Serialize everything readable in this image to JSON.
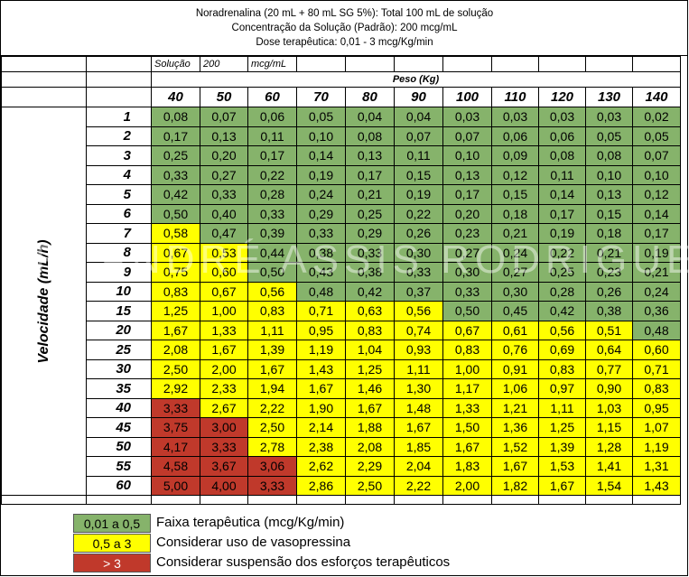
{
  "header": {
    "line1": "Noradrenalina (20 mL + 80 mL SG 5%): Total 100 mL de solução",
    "line2": "Concentração da Solução (Padrão): 200 mcg/mL",
    "line3": "Dose terapêutica: 0,01 - 3 mcg/Kg/min"
  },
  "solution_row": {
    "label": "Solução",
    "value": "200",
    "unit": "mcg/mL"
  },
  "peso_label": "Peso (Kg)",
  "axis_label": "Velocidade (mL/h)",
  "watermark": "DR. ANDRÉ ASSIS RODRIGUES",
  "weights": [
    "40",
    "50",
    "60",
    "70",
    "80",
    "90",
    "100",
    "110",
    "120",
    "130",
    "140"
  ],
  "colors": {
    "green": "#86b36b",
    "yellow": "#ffff00",
    "red": "#c0392b"
  },
  "rows": [
    {
      "rate": "1",
      "values": [
        "0,08",
        "0,07",
        "0,06",
        "0,05",
        "0,04",
        "0,04",
        "0,03",
        "0,03",
        "0,03",
        "0,03",
        "0,02"
      ],
      "bands": [
        "g",
        "g",
        "g",
        "g",
        "g",
        "g",
        "g",
        "g",
        "g",
        "g",
        "g"
      ]
    },
    {
      "rate": "2",
      "values": [
        "0,17",
        "0,13",
        "0,11",
        "0,10",
        "0,08",
        "0,07",
        "0,07",
        "0,06",
        "0,06",
        "0,05",
        "0,05"
      ],
      "bands": [
        "g",
        "g",
        "g",
        "g",
        "g",
        "g",
        "g",
        "g",
        "g",
        "g",
        "g"
      ]
    },
    {
      "rate": "3",
      "values": [
        "0,25",
        "0,20",
        "0,17",
        "0,14",
        "0,13",
        "0,11",
        "0,10",
        "0,09",
        "0,08",
        "0,08",
        "0,07"
      ],
      "bands": [
        "g",
        "g",
        "g",
        "g",
        "g",
        "g",
        "g",
        "g",
        "g",
        "g",
        "g"
      ]
    },
    {
      "rate": "4",
      "values": [
        "0,33",
        "0,27",
        "0,22",
        "0,19",
        "0,17",
        "0,15",
        "0,13",
        "0,12",
        "0,11",
        "0,10",
        "0,10"
      ],
      "bands": [
        "g",
        "g",
        "g",
        "g",
        "g",
        "g",
        "g",
        "g",
        "g",
        "g",
        "g"
      ]
    },
    {
      "rate": "5",
      "values": [
        "0,42",
        "0,33",
        "0,28",
        "0,24",
        "0,21",
        "0,19",
        "0,17",
        "0,15",
        "0,14",
        "0,13",
        "0,12"
      ],
      "bands": [
        "g",
        "g",
        "g",
        "g",
        "g",
        "g",
        "g",
        "g",
        "g",
        "g",
        "g"
      ]
    },
    {
      "rate": "6",
      "values": [
        "0,50",
        "0,40",
        "0,33",
        "0,29",
        "0,25",
        "0,22",
        "0,20",
        "0,18",
        "0,17",
        "0,15",
        "0,14"
      ],
      "bands": [
        "g",
        "g",
        "g",
        "g",
        "g",
        "g",
        "g",
        "g",
        "g",
        "g",
        "g"
      ]
    },
    {
      "rate": "7",
      "values": [
        "0,58",
        "0,47",
        "0,39",
        "0,33",
        "0,29",
        "0,26",
        "0,23",
        "0,21",
        "0,19",
        "0,18",
        "0,17"
      ],
      "bands": [
        "y",
        "g",
        "g",
        "g",
        "g",
        "g",
        "g",
        "g",
        "g",
        "g",
        "g"
      ]
    },
    {
      "rate": "8",
      "values": [
        "0,67",
        "0,53",
        "0,44",
        "0,38",
        "0,33",
        "0,30",
        "0,27",
        "0,24",
        "0,22",
        "0,21",
        "0,19"
      ],
      "bands": [
        "y",
        "y",
        "g",
        "g",
        "g",
        "g",
        "g",
        "g",
        "g",
        "g",
        "g"
      ]
    },
    {
      "rate": "9",
      "values": [
        "0,75",
        "0,60",
        "0,50",
        "0,43",
        "0,38",
        "0,33",
        "0,30",
        "0,27",
        "0,25",
        "0,23",
        "0,21"
      ],
      "bands": [
        "y",
        "y",
        "g",
        "g",
        "g",
        "g",
        "g",
        "g",
        "g",
        "g",
        "g"
      ]
    },
    {
      "rate": "10",
      "values": [
        "0,83",
        "0,67",
        "0,56",
        "0,48",
        "0,42",
        "0,37",
        "0,33",
        "0,30",
        "0,28",
        "0,26",
        "0,24"
      ],
      "bands": [
        "y",
        "y",
        "y",
        "g",
        "g",
        "g",
        "g",
        "g",
        "g",
        "g",
        "g"
      ]
    },
    {
      "rate": "15",
      "values": [
        "1,25",
        "1,00",
        "0,83",
        "0,71",
        "0,63",
        "0,56",
        "0,50",
        "0,45",
        "0,42",
        "0,38",
        "0,36"
      ],
      "bands": [
        "y",
        "y",
        "y",
        "y",
        "y",
        "y",
        "g",
        "g",
        "g",
        "g",
        "g"
      ]
    },
    {
      "rate": "20",
      "values": [
        "1,67",
        "1,33",
        "1,11",
        "0,95",
        "0,83",
        "0,74",
        "0,67",
        "0,61",
        "0,56",
        "0,51",
        "0,48"
      ],
      "bands": [
        "y",
        "y",
        "y",
        "y",
        "y",
        "y",
        "y",
        "y",
        "y",
        "y",
        "g"
      ]
    },
    {
      "rate": "25",
      "values": [
        "2,08",
        "1,67",
        "1,39",
        "1,19",
        "1,04",
        "0,93",
        "0,83",
        "0,76",
        "0,69",
        "0,64",
        "0,60"
      ],
      "bands": [
        "y",
        "y",
        "y",
        "y",
        "y",
        "y",
        "y",
        "y",
        "y",
        "y",
        "y"
      ]
    },
    {
      "rate": "30",
      "values": [
        "2,50",
        "2,00",
        "1,67",
        "1,43",
        "1,25",
        "1,11",
        "1,00",
        "0,91",
        "0,83",
        "0,77",
        "0,71"
      ],
      "bands": [
        "y",
        "y",
        "y",
        "y",
        "y",
        "y",
        "y",
        "y",
        "y",
        "y",
        "y"
      ]
    },
    {
      "rate": "35",
      "values": [
        "2,92",
        "2,33",
        "1,94",
        "1,67",
        "1,46",
        "1,30",
        "1,17",
        "1,06",
        "0,97",
        "0,90",
        "0,83"
      ],
      "bands": [
        "y",
        "y",
        "y",
        "y",
        "y",
        "y",
        "y",
        "y",
        "y",
        "y",
        "y"
      ]
    },
    {
      "rate": "40",
      "values": [
        "3,33",
        "2,67",
        "2,22",
        "1,90",
        "1,67",
        "1,48",
        "1,33",
        "1,21",
        "1,11",
        "1,03",
        "0,95"
      ],
      "bands": [
        "r",
        "y",
        "y",
        "y",
        "y",
        "y",
        "y",
        "y",
        "y",
        "y",
        "y"
      ]
    },
    {
      "rate": "45",
      "values": [
        "3,75",
        "3,00",
        "2,50",
        "2,14",
        "1,88",
        "1,67",
        "1,50",
        "1,36",
        "1,25",
        "1,15",
        "1,07"
      ],
      "bands": [
        "r",
        "r",
        "y",
        "y",
        "y",
        "y",
        "y",
        "y",
        "y",
        "y",
        "y"
      ]
    },
    {
      "rate": "50",
      "values": [
        "4,17",
        "3,33",
        "2,78",
        "2,38",
        "2,08",
        "1,85",
        "1,67",
        "1,52",
        "1,39",
        "1,28",
        "1,19"
      ],
      "bands": [
        "r",
        "r",
        "y",
        "y",
        "y",
        "y",
        "y",
        "y",
        "y",
        "y",
        "y"
      ]
    },
    {
      "rate": "55",
      "values": [
        "4,58",
        "3,67",
        "3,06",
        "2,62",
        "2,29",
        "2,04",
        "1,83",
        "1,67",
        "1,53",
        "1,41",
        "1,31"
      ],
      "bands": [
        "r",
        "r",
        "r",
        "y",
        "y",
        "y",
        "y",
        "y",
        "y",
        "y",
        "y"
      ]
    },
    {
      "rate": "60",
      "values": [
        "5,00",
        "4,00",
        "3,33",
        "2,86",
        "2,50",
        "2,22",
        "2,00",
        "1,82",
        "1,67",
        "1,54",
        "1,43"
      ],
      "bands": [
        "r",
        "r",
        "r",
        "y",
        "y",
        "y",
        "y",
        "y",
        "y",
        "y",
        "y"
      ]
    }
  ],
  "legend": [
    {
      "range": "0,01 a 0,5",
      "text": "Faixa terapêutica (mcg/Kg/min)",
      "band": "g"
    },
    {
      "range": "0,5 a 3",
      "text": "Considerar uso de vasopressina",
      "band": "y"
    },
    {
      "range": "> 3",
      "text": "Considerar suspensão dos esforços terapêuticos",
      "band": "r"
    }
  ]
}
